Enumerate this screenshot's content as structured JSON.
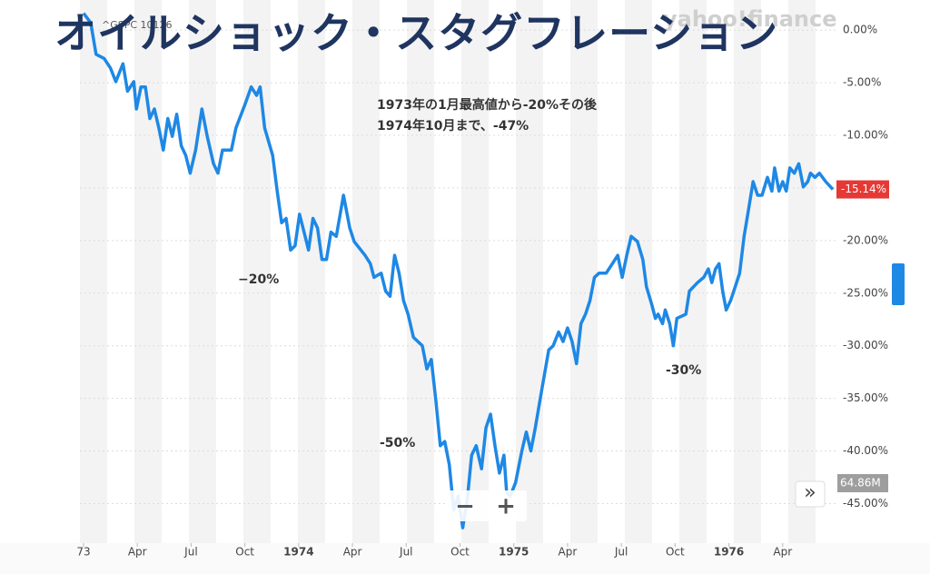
{
  "chart_data": {
    "type": "line",
    "title": "オイルショック・スタグフレーション",
    "ticker": "^GSPC 10126",
    "watermark": "yahoo!finance",
    "annotations": [
      "1973年の1月最高値から-20%その後",
      "1974年10月まで、-47%",
      "−20%",
      "-50%",
      "-30%"
    ],
    "current_label": "-15.14%",
    "volume_label": "64.86M",
    "zoom_out": "−",
    "zoom_in": "+",
    "expand": "»",
    "xlim": [
      0,
      42
    ],
    "xticks": [
      {
        "value": 0,
        "label": "73"
      },
      {
        "value": 3,
        "label": "Apr"
      },
      {
        "value": 6,
        "label": "Jul"
      },
      {
        "value": 9,
        "label": "Oct"
      },
      {
        "value": 12,
        "label": "1974"
      },
      {
        "value": 15,
        "label": "Apr"
      },
      {
        "value": 18,
        "label": "Jul"
      },
      {
        "value": 21,
        "label": "Oct"
      },
      {
        "value": 24,
        "label": "1975"
      },
      {
        "value": 27,
        "label": "Apr"
      },
      {
        "value": 30,
        "label": "Jul"
      },
      {
        "value": 33,
        "label": "Oct"
      },
      {
        "value": 36,
        "label": "1976"
      },
      {
        "value": 39,
        "label": "Apr"
      }
    ],
    "ylim": [
      -48.5,
      2
    ],
    "yticks": [
      {
        "value": 0,
        "label": "0.00%"
      },
      {
        "value": -5,
        "label": "-5.00%"
      },
      {
        "value": -10,
        "label": "-10.00%"
      },
      {
        "value": -15,
        "label": "-15.00%"
      },
      {
        "value": -20,
        "label": "-20.00%"
      },
      {
        "value": -25,
        "label": "-25.00%"
      },
      {
        "value": -30,
        "label": "-30.00%"
      },
      {
        "value": -35,
        "label": "-35.00%"
      },
      {
        "value": -40,
        "label": "-40.00%"
      },
      {
        "value": -45,
        "label": "-45.00%"
      }
    ],
    "grid": true,
    "series": [
      {
        "color": "#1e88e5",
        "x": [
          0,
          0.4,
          0.7,
          1.15,
          1.5,
          1.8,
          2.2,
          2.45,
          2.8,
          2.95,
          3.2,
          3.45,
          3.7,
          3.95,
          4.2,
          4.45,
          4.7,
          4.95,
          5.2,
          5.45,
          5.7,
          5.95,
          6.25,
          6.6,
          6.9,
          7.25,
          7.5,
          7.75,
          8.25,
          8.5,
          9.0,
          9.35,
          9.65,
          9.85,
          10.1,
          10.55,
          10.8,
          11.05,
          11.3,
          11.55,
          11.8,
          12.05,
          12.3,
          12.55,
          12.8,
          13.05,
          13.3,
          13.55,
          13.8,
          14.1,
          14.5,
          14.85,
          15.1,
          15.7,
          16.0,
          16.2,
          16.6,
          16.85,
          17.1,
          17.35,
          17.6,
          17.85,
          18.1,
          18.4,
          18.9,
          19.15,
          19.4,
          19.65,
          19.9,
          20.15,
          20.4,
          20.65,
          20.9,
          21.15,
          21.4,
          21.65,
          21.9,
          22.2,
          22.45,
          22.7,
          22.95,
          23.2,
          23.45,
          23.6,
          23.8,
          24.1,
          24.45,
          24.7,
          24.95,
          25.2,
          25.55,
          25.95,
          26.2,
          26.5,
          26.75,
          27.0,
          27.25,
          27.5,
          27.75,
          28.0,
          28.25,
          28.5,
          28.75,
          29.15,
          29.5,
          29.8,
          30.05,
          30.3,
          30.55,
          30.9,
          31.2,
          31.4,
          31.7,
          31.9,
          32.05,
          32.3,
          32.45,
          32.7,
          32.9,
          33.1,
          33.6,
          33.8,
          34.25,
          34.6,
          34.85,
          35.05,
          35.25,
          35.45,
          35.65,
          35.85,
          36.1,
          36.35,
          36.6,
          36.85,
          37.1,
          37.35,
          37.6,
          37.85,
          38.15,
          38.4,
          38.55,
          38.8,
          39.0,
          39.2,
          39.4,
          39.65,
          39.9,
          40.15,
          40.4,
          40.55,
          40.8,
          41.05,
          41.4,
          41.8
        ],
        "values": [
          1.6,
          0.7,
          -2.3,
          -2.7,
          -3.6,
          -4.9,
          -3.2,
          -5.8,
          -4.9,
          -7.5,
          -5.4,
          -5.4,
          -8.4,
          -7.5,
          -9.3,
          -11.4,
          -8.4,
          -10.1,
          -8.0,
          -11.0,
          -11.9,
          -13.6,
          -11.4,
          -7.5,
          -10.1,
          -12.7,
          -13.6,
          -11.4,
          -11.4,
          -9.3,
          -7.1,
          -5.4,
          -6.2,
          -5.4,
          -9.3,
          -11.9,
          -15.3,
          -18.3,
          -17.9,
          -20.9,
          -20.5,
          -17.5,
          -19.2,
          -20.9,
          -17.9,
          -18.8,
          -21.8,
          -21.8,
          -19.2,
          -19.6,
          -15.7,
          -18.8,
          -20.1,
          -21.4,
          -22.2,
          -23.5,
          -23.1,
          -24.8,
          -25.3,
          -21.4,
          -23.1,
          -25.7,
          -27.0,
          -29.2,
          -30.0,
          -32.2,
          -31.3,
          -35.2,
          -39.5,
          -39.1,
          -41.3,
          -45.6,
          -44.3,
          -47.3,
          -44.7,
          -40.4,
          -39.5,
          -41.7,
          -37.8,
          -36.5,
          -39.5,
          -42.1,
          -40.4,
          -43.9,
          -44.3,
          -43.0,
          -40.0,
          -38.2,
          -40.0,
          -37.8,
          -34.3,
          -30.4,
          -30.0,
          -28.7,
          -29.6,
          -28.3,
          -29.6,
          -31.7,
          -27.9,
          -27.0,
          -25.7,
          -23.5,
          -23.1,
          -23.1,
          -22.2,
          -21.4,
          -23.5,
          -21.4,
          -19.6,
          -20.1,
          -21.8,
          -24.4,
          -26.1,
          -27.4,
          -27.0,
          -27.9,
          -26.6,
          -27.9,
          -30.0,
          -27.4,
          -27.0,
          -24.8,
          -24.0,
          -23.5,
          -22.7,
          -24.0,
          -22.7,
          -22.2,
          -24.8,
          -26.6,
          -25.7,
          -24.4,
          -23.1,
          -19.6,
          -17.0,
          -14.4,
          -15.7,
          -15.7,
          -14.0,
          -15.3,
          -13.1,
          -15.3,
          -14.4,
          -15.3,
          -13.1,
          -13.6,
          -12.7,
          -14.9,
          -14.4,
          -13.6,
          -14.0,
          -13.6,
          -14.4,
          -15.14
        ]
      }
    ]
  }
}
